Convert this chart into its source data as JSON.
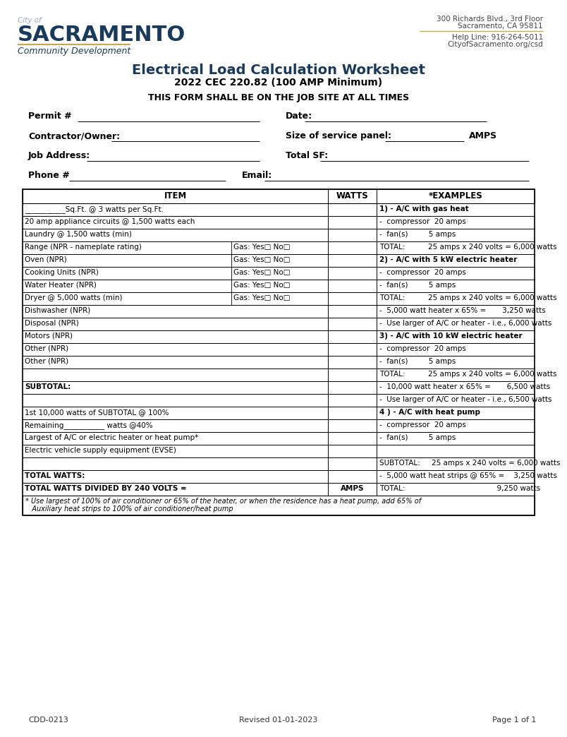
{
  "title1": "Electrical Load Calculation Worksheet",
  "title2": "2022 CEC 220.82 (100 AMP Minimum)",
  "title3": "THIS FORM SHALL BE ON THE JOB SITE AT ALL TIMES",
  "logo_city_of": "City of",
  "logo_sacramento": "SACRAMENTO",
  "logo_community": "Community Development",
  "addr1": "300 Richards Blvd., 3rd Floor",
  "addr2": "Sacramento, CA 95811",
  "addr3": "Help Line: 916-264-5011",
  "addr4": "CityofSacramento.org/csd",
  "gold_color": "#c8a84b",
  "navy_color": "#1a3a5c",
  "table_rows": [
    {
      "item": "___________Sq.Ft. @ 3 watts per Sq.Ft.",
      "gas": "",
      "example": "1) - A/C with gas heat",
      "ex_bold": true,
      "item_bold": false
    },
    {
      "item": "20 amp appliance circuits @ 1,500 watts each",
      "gas": "",
      "example": "-  compressor  20 amps",
      "ex_bold": false,
      "item_bold": false
    },
    {
      "item": "Laundry @ 1,500 watts (min)",
      "gas": "",
      "example": "-  fan(s)         5 amps",
      "ex_bold": false,
      "item_bold": false
    },
    {
      "item": "Range (NPR - nameplate rating)",
      "gas": "Gas: Yes□ No□",
      "example": "TOTAL:          25 amps x 240 volts = 6,000 watts",
      "ex_bold": false,
      "item_bold": false
    },
    {
      "item": "Oven (NPR)",
      "gas": "Gas: Yes□ No□",
      "example": "2) - A/C with 5 kW electric heater",
      "ex_bold": true,
      "item_bold": false
    },
    {
      "item": "Cooking Units (NPR)",
      "gas": "Gas: Yes□ No□",
      "example": "-  compressor  20 amps",
      "ex_bold": false,
      "item_bold": false
    },
    {
      "item": "Water Heater (NPR)",
      "gas": "Gas: Yes□ No□",
      "example": "-  fan(s)         5 amps",
      "ex_bold": false,
      "item_bold": false
    },
    {
      "item": "Dryer @ 5,000 watts (min)",
      "gas": "Gas: Yes□ No□",
      "example": "TOTAL:          25 amps x 240 volts = 6,000 watts",
      "ex_bold": false,
      "item_bold": false
    },
    {
      "item": "Dishwasher (NPR)",
      "gas": "",
      "example": "-  5,000 watt heater x 65% =       3,250 watts",
      "ex_bold": false,
      "item_bold": false
    },
    {
      "item": "Disposal (NPR)",
      "gas": "",
      "example": "-  Use larger of A/C or heater - i.e., 6,000 watts",
      "ex_bold": false,
      "item_bold": false
    },
    {
      "item": "Motors (NPR)",
      "gas": "",
      "example": "3) - A/C with 10 kW electric heater",
      "ex_bold": true,
      "item_bold": false
    },
    {
      "item": "Other (NPR)",
      "gas": "",
      "example": "-  compressor  20 amps",
      "ex_bold": false,
      "item_bold": false
    },
    {
      "item": "Other (NPR)",
      "gas": "",
      "example": "-  fan(s)         5 amps",
      "ex_bold": false,
      "item_bold": false
    },
    {
      "item": "",
      "gas": "",
      "example": "TOTAL:          25 amps x 240 volts = 6,000 watts",
      "ex_bold": false,
      "item_bold": false
    },
    {
      "item": "SUBTOTAL:",
      "gas": "",
      "example": "-  10,000 watt heater x 65% =       6,500 watts",
      "ex_bold": false,
      "item_bold": true
    },
    {
      "item": "",
      "gas": "",
      "example": "-  Use larger of A/C or heater - i.e., 6,500 watts",
      "ex_bold": false,
      "item_bold": false
    },
    {
      "item": "1st 10,000 watts of SUBTOTAL @ 100%",
      "gas": "",
      "example": "4 ) - A/C with heat pump",
      "ex_bold": true,
      "item_bold": false
    },
    {
      "item": "Remaining___________ watts @40%",
      "gas": "",
      "example": "-  compressor  20 amps",
      "ex_bold": false,
      "item_bold": false
    },
    {
      "item": "Largest of A/C or electric heater or heat pump*",
      "gas": "",
      "example": "-  fan(s)         5 amps",
      "ex_bold": false,
      "item_bold": false
    },
    {
      "item": "Electric vehicle supply equipment (EVSE)",
      "gas": "",
      "example": "",
      "ex_bold": false,
      "item_bold": false
    },
    {
      "item": "",
      "gas": "",
      "example": "SUBTOTAL:     25 amps x 240 volts = 6,000 watts",
      "ex_bold": false,
      "item_bold": false
    },
    {
      "item": "TOTAL WATTS:",
      "gas": "",
      "example": "-  5,000 watt heat strips @ 65% =    3,250 watts",
      "ex_bold": false,
      "item_bold": true
    },
    {
      "item": "TOTAL WATTS DIVIDED BY 240 VOLTS =",
      "gas": "",
      "watts_label": "AMPS",
      "example": "TOTAL:                                        9,250 watts",
      "ex_bold": false,
      "item_bold": true
    }
  ],
  "footnote_line1": "* Use largest of 100% of air conditioner or 65% of the heater, or when the residence has a heat pump, add 65% of",
  "footnote_line2": "   Auxiliary heat strips to 100% of air conditioner/heat pump",
  "footer_left": "CDD-0213",
  "footer_center": "Revised 01-01-2023",
  "footer_right": "Page 1 of 1"
}
